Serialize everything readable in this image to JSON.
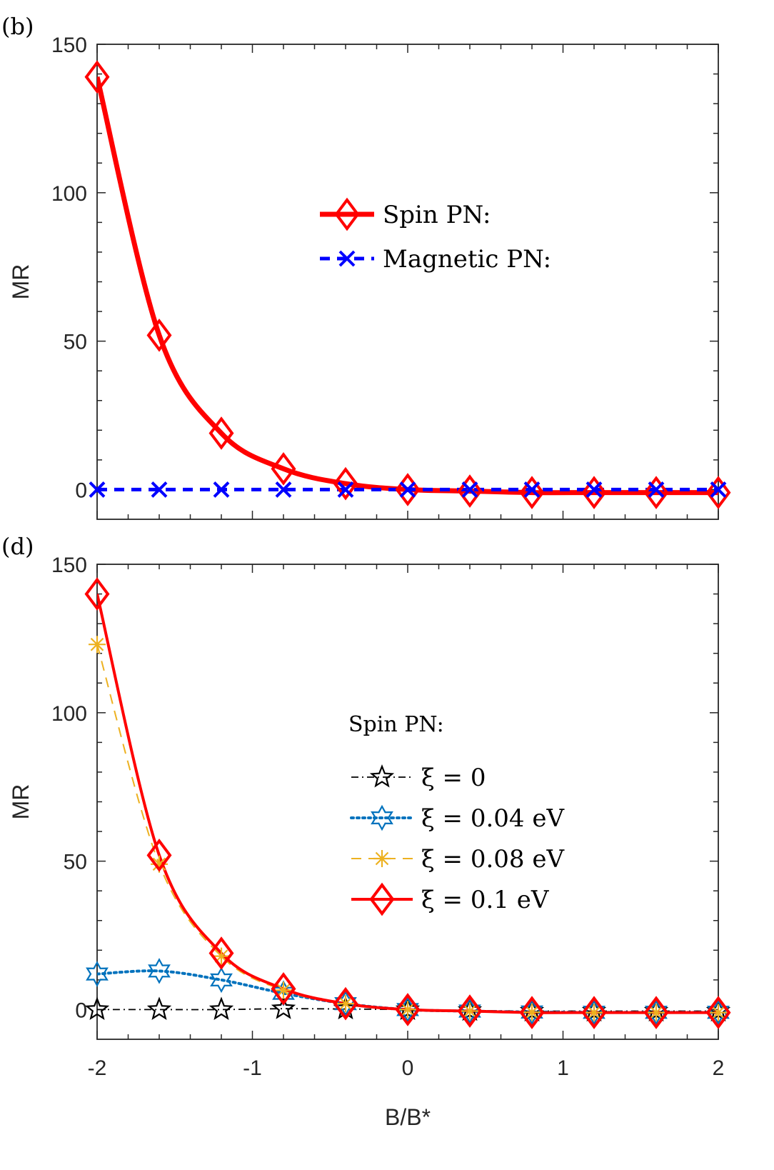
{
  "chart_data": [
    {
      "panel": "(b)",
      "type": "line",
      "xlabel": "",
      "ylabel": "MR",
      "xlim": [
        -2,
        2
      ],
      "ylim": [
        -10,
        150
      ],
      "yticks": [
        0,
        50,
        100,
        150
      ],
      "xticks": [
        -2,
        -1,
        0,
        1,
        2
      ],
      "grid": false,
      "legend_placement": "center-right",
      "legend_title": "",
      "series": [
        {
          "name": "Spin PN:",
          "color": "#ff0000",
          "style": "solid",
          "marker": "diamond",
          "x": [
            -2,
            -1.6,
            -1.2,
            -0.8,
            -0.4,
            0,
            0.4,
            0.8,
            1.2,
            1.6,
            2
          ],
          "values": [
            139,
            52,
            19,
            7,
            2,
            0,
            -0.5,
            -1,
            -1,
            -1,
            -1
          ]
        },
        {
          "name": "Magnetic PN:",
          "color": "#0000ff",
          "style": "dashed",
          "marker": "x",
          "x": [
            -2,
            -1.6,
            -1.2,
            -0.8,
            -0.4,
            0,
            0.4,
            0.8,
            1.2,
            1.6,
            2
          ],
          "values": [
            0,
            0,
            0,
            0,
            0,
            0,
            0,
            0,
            0,
            0,
            0
          ]
        }
      ]
    },
    {
      "panel": "(d)",
      "type": "line",
      "xlabel": "B/B*",
      "ylabel": "MR",
      "xlim": [
        -2,
        2
      ],
      "ylim": [
        -10,
        150
      ],
      "yticks": [
        0,
        50,
        100,
        150
      ],
      "xticks": [
        -2,
        -1,
        0,
        1,
        2
      ],
      "grid": false,
      "legend_placement": "center-right",
      "legend_title": "Spin PN:",
      "series": [
        {
          "name": "ξ = 0",
          "color": "#000000",
          "style": "dashdot",
          "marker": "star5",
          "x": [
            -2,
            -1.6,
            -1.2,
            -0.8,
            -0.4,
            0,
            0.4,
            0.8,
            1.2,
            1.6,
            2
          ],
          "values": [
            0,
            0,
            0,
            0.3,
            0.2,
            0,
            -0.3,
            -0.5,
            -0.5,
            -0.5,
            -0.5
          ]
        },
        {
          "name": "ξ = 0.04 eV",
          "color": "#0072bd",
          "style": "dotted",
          "marker": "star6",
          "x": [
            -2,
            -1.6,
            -1.2,
            -0.8,
            -0.4,
            0,
            0.4,
            0.8,
            1.2,
            1.6,
            2
          ],
          "values": [
            12,
            13,
            10,
            5.5,
            2,
            0,
            -0.5,
            -0.8,
            -0.9,
            -0.9,
            -0.9
          ]
        },
        {
          "name": "ξ = 0.08 eV",
          "color": "#edb120",
          "style": "dashed",
          "marker": "asterisk",
          "x": [
            -2,
            -1.6,
            -1.2,
            -0.8,
            -0.4,
            0,
            0.4,
            0.8,
            1.2,
            1.6,
            2
          ],
          "values": [
            123,
            49,
            18,
            6.5,
            2,
            0,
            -0.5,
            -0.9,
            -1,
            -1,
            -1
          ]
        },
        {
          "name": "ξ = 0.1 eV",
          "color": "#ff0000",
          "style": "solid",
          "marker": "diamond",
          "x": [
            -2,
            -1.6,
            -1.2,
            -0.8,
            -0.4,
            0,
            0.4,
            0.8,
            1.2,
            1.6,
            2
          ],
          "values": [
            140,
            52,
            19,
            7,
            2,
            0,
            -0.5,
            -1,
            -1,
            -1,
            -1
          ]
        }
      ]
    }
  ]
}
